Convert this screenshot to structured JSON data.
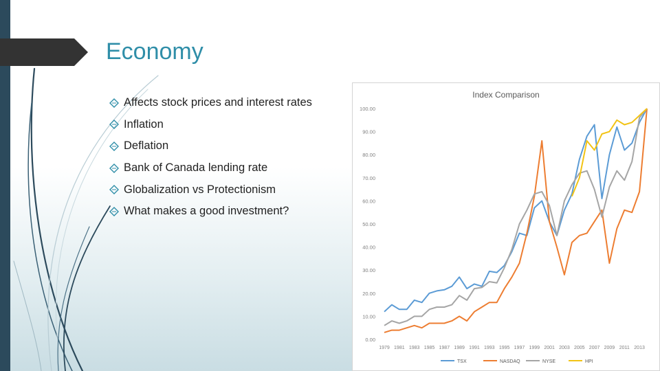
{
  "slide": {
    "title": "Economy",
    "bullets": [
      "Affects stock prices and interest rates",
      "Inflation",
      "Deflation",
      "Bank of Canada lending rate",
      "Globalization vs Protectionism",
      "What makes a good investment?"
    ],
    "colors": {
      "title": "#2f8ea8",
      "left_bar": "#2c4a5c",
      "bullet_icon": "#2f8ea8"
    }
  },
  "chart_data": {
    "type": "line",
    "title": "Index Comparison",
    "xlabel": "",
    "ylabel": "",
    "ylim": [
      0,
      100
    ],
    "y_ticks": [
      "0.00",
      "10.00",
      "20.00",
      "30.00",
      "40.00",
      "50.00",
      "60.00",
      "70.00",
      "80.00",
      "90.00",
      "100.00"
    ],
    "x_tick_labels": [
      "1979",
      "1981",
      "1983",
      "1985",
      "1987",
      "1989",
      "1991",
      "1993",
      "1995",
      "1997",
      "1999",
      "2001",
      "2003",
      "2005",
      "2007",
      "2009",
      "2011",
      "2013"
    ],
    "x": [
      1979,
      1980,
      1981,
      1982,
      1983,
      1984,
      1985,
      1986,
      1987,
      1988,
      1989,
      1990,
      1991,
      1992,
      1993,
      1994,
      1995,
      1996,
      1997,
      1998,
      1999,
      2000,
      2001,
      2002,
      2003,
      2004,
      2005,
      2006,
      2007,
      2008,
      2009,
      2010,
      2011,
      2012,
      2013,
      2014
    ],
    "grid": false,
    "legend": "bottom",
    "series": [
      {
        "name": "TSX",
        "color": "#5b9bd5",
        "values": [
          12,
          15,
          13,
          13,
          17,
          16,
          20,
          21,
          21.5,
          23,
          27,
          22,
          24,
          23,
          29.5,
          29,
          32,
          38,
          46,
          45,
          57,
          60,
          51,
          45,
          56,
          63,
          78,
          88,
          93,
          61,
          80,
          92,
          82,
          85,
          94,
          100
        ]
      },
      {
        "name": "NASDAQ",
        "color": "#ed7d31",
        "values": [
          3,
          4,
          4,
          5,
          6,
          5,
          7,
          7,
          7,
          8,
          10,
          8,
          12,
          14,
          16,
          16,
          22,
          27,
          33,
          46,
          62,
          86,
          51,
          40,
          28,
          42,
          45,
          46,
          51,
          56,
          33,
          48,
          56,
          55,
          64,
          100
        ]
      },
      {
        "name": "NYSE",
        "color": "#a5a5a5",
        "values": [
          6,
          8,
          7,
          8,
          10,
          10,
          13,
          14,
          14,
          15,
          19,
          17,
          22,
          22.5,
          25,
          24.5,
          31,
          39,
          50,
          56,
          63,
          64,
          58,
          45,
          60,
          67,
          72,
          73,
          65,
          53,
          66,
          73,
          69,
          77,
          96,
          100
        ]
      },
      {
        "name": "HPI",
        "color": "#f2c314",
        "values": [
          null,
          null,
          null,
          null,
          null,
          null,
          null,
          null,
          null,
          null,
          null,
          null,
          null,
          null,
          null,
          null,
          null,
          null,
          null,
          null,
          null,
          null,
          null,
          null,
          null,
          62,
          70,
          86,
          82,
          89,
          90,
          95,
          93,
          94,
          97,
          100
        ]
      }
    ]
  }
}
